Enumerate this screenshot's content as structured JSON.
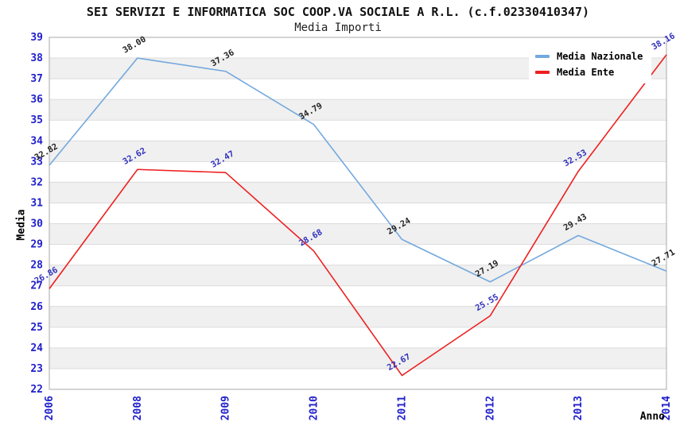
{
  "header": {
    "title": "SEI SERVIZI E INFORMATICA SOC COOP.VA SOCIALE A R.L. (c.f.02330410347)",
    "subtitle": "Media Importi"
  },
  "chart_data": {
    "type": "line",
    "title": "SEI SERVIZI E INFORMATICA SOC COOP.VA SOCIALE A R.L. (c.f.02330410347)",
    "subtitle": "Media Importi",
    "xlabel": "Anno",
    "ylabel": "Media",
    "categories": [
      "2006",
      "2008",
      "2009",
      "2010",
      "2011",
      "2012",
      "2013",
      "2014"
    ],
    "series": [
      {
        "name": "Media Nazionale",
        "color": "#74a9de",
        "label_color": "#222222",
        "values": [
          32.82,
          38.0,
          37.36,
          34.79,
          29.24,
          27.19,
          29.43,
          27.71
        ]
      },
      {
        "name": "Media Ente",
        "color": "#ee2020",
        "label_color": "#3030be",
        "values": [
          26.86,
          32.62,
          32.47,
          28.68,
          22.67,
          25.55,
          32.53,
          38.16
        ]
      }
    ],
    "ylim": [
      22,
      39
    ],
    "ytick_step": 1,
    "axis_tick_color": "#2020cc",
    "band_color": "#f0f0f0",
    "grid_color": "#dcdcdc",
    "border_color": "#aaaaaa",
    "grid": "horizontal-alternating-bands",
    "legend_position": "top-right",
    "point_label_decimals": 2
  }
}
